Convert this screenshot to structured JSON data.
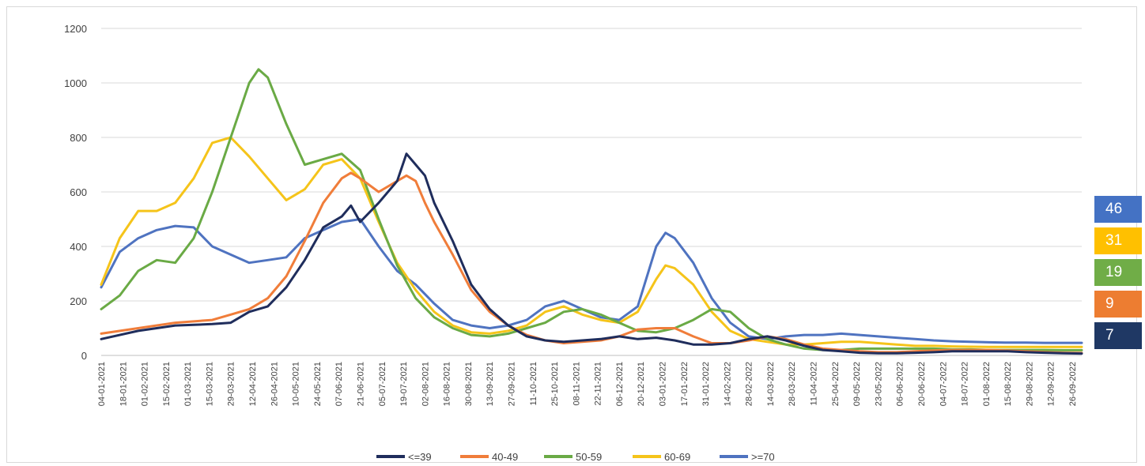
{
  "chart_data": {
    "type": "line",
    "ylim": [
      0,
      1200
    ],
    "yticks": [
      0,
      200,
      400,
      600,
      800,
      1000,
      1200
    ],
    "grid": true,
    "legend": "bottom",
    "xticks": [
      "04-01-2021",
      "18-01-2021",
      "01-02-2021",
      "15-02-2021",
      "01-03-2021",
      "15-03-2021",
      "29-03-2021",
      "12-04-2021",
      "26-04-2021",
      "10-05-2021",
      "24-05-2021",
      "07-06-2021",
      "21-06-2021",
      "05-07-2021",
      "19-07-2021",
      "02-08-2021",
      "16-08-2021",
      "30-08-2021",
      "13-09-2021",
      "27-09-2021",
      "11-10-2021",
      "25-10-2021",
      "08-11-2021",
      "22-11-2021",
      "06-12-2021",
      "20-12-2021",
      "03-01-2022",
      "17-01-2022",
      "31-01-2022",
      "14-02-2022",
      "28-02-2022",
      "14-03-2022",
      "28-03-2022",
      "11-04-2022",
      "25-04-2022",
      "09-05-2022",
      "23-05-2022",
      "06-06-2022",
      "20-06-2022",
      "04-07-2022",
      "18-07-2022",
      "01-08-2022",
      "15-08-2022",
      "29-08-2022",
      "12-09-2022",
      "26-09-2022"
    ],
    "series": [
      {
        "name": "<=39",
        "color": "#1f2d5c",
        "points": [
          [
            0,
            60
          ],
          [
            2,
            90
          ],
          [
            4,
            110
          ],
          [
            6,
            115
          ],
          [
            7,
            120
          ],
          [
            8,
            160
          ],
          [
            9,
            180
          ],
          [
            10,
            250
          ],
          [
            11,
            350
          ],
          [
            12,
            470
          ],
          [
            13,
            510
          ],
          [
            13.5,
            550
          ],
          [
            14,
            490
          ],
          [
            15,
            560
          ],
          [
            16,
            640
          ],
          [
            16.5,
            740
          ],
          [
            17,
            700
          ],
          [
            17.5,
            660
          ],
          [
            18,
            560
          ],
          [
            19,
            420
          ],
          [
            20,
            260
          ],
          [
            21,
            170
          ],
          [
            22,
            110
          ],
          [
            23,
            70
          ],
          [
            24,
            55
          ],
          [
            25,
            50
          ],
          [
            26,
            55
          ],
          [
            27,
            60
          ],
          [
            28,
            70
          ],
          [
            29,
            60
          ],
          [
            30,
            65
          ],
          [
            31,
            55
          ],
          [
            32,
            40
          ],
          [
            33,
            40
          ],
          [
            34,
            45
          ],
          [
            35,
            60
          ],
          [
            36,
            70
          ],
          [
            37,
            55
          ],
          [
            38,
            35
          ],
          [
            39,
            20
          ],
          [
            40,
            15
          ],
          [
            41,
            10
          ],
          [
            42,
            8
          ],
          [
            43,
            8
          ],
          [
            44,
            10
          ],
          [
            45,
            12
          ],
          [
            46,
            15
          ],
          [
            47,
            15
          ],
          [
            48,
            15
          ],
          [
            49,
            15
          ],
          [
            50,
            12
          ],
          [
            51,
            10
          ],
          [
            52,
            8
          ],
          [
            53,
            7
          ]
        ]
      },
      {
        "name": "40-49",
        "color": "#f07d3a",
        "points": [
          [
            0,
            80
          ],
          [
            2,
            100
          ],
          [
            4,
            120
          ],
          [
            6,
            130
          ],
          [
            7,
            150
          ],
          [
            8,
            170
          ],
          [
            9,
            210
          ],
          [
            10,
            290
          ],
          [
            11,
            420
          ],
          [
            12,
            560
          ],
          [
            13,
            650
          ],
          [
            13.5,
            670
          ],
          [
            14,
            650
          ],
          [
            15,
            600
          ],
          [
            16,
            640
          ],
          [
            16.5,
            660
          ],
          [
            17,
            640
          ],
          [
            17.5,
            560
          ],
          [
            18,
            490
          ],
          [
            19,
            370
          ],
          [
            20,
            240
          ],
          [
            21,
            160
          ],
          [
            22,
            110
          ],
          [
            23,
            75
          ],
          [
            24,
            55
          ],
          [
            25,
            45
          ],
          [
            26,
            50
          ],
          [
            27,
            55
          ],
          [
            28,
            70
          ],
          [
            29,
            95
          ],
          [
            30,
            100
          ],
          [
            31,
            100
          ],
          [
            32,
            70
          ],
          [
            33,
            45
          ],
          [
            34,
            45
          ],
          [
            35,
            55
          ],
          [
            36,
            70
          ],
          [
            37,
            60
          ],
          [
            38,
            40
          ],
          [
            39,
            25
          ],
          [
            40,
            20
          ],
          [
            41,
            15
          ],
          [
            42,
            12
          ],
          [
            43,
            12
          ],
          [
            44,
            15
          ],
          [
            45,
            18
          ],
          [
            46,
            20
          ],
          [
            47,
            20
          ],
          [
            48,
            20
          ],
          [
            49,
            18
          ],
          [
            50,
            15
          ],
          [
            51,
            12
          ],
          [
            52,
            10
          ],
          [
            53,
            9
          ]
        ]
      },
      {
        "name": "50-59",
        "color": "#6aaa45",
        "points": [
          [
            0,
            170
          ],
          [
            1,
            220
          ],
          [
            2,
            310
          ],
          [
            3,
            350
          ],
          [
            4,
            340
          ],
          [
            5,
            430
          ],
          [
            6,
            600
          ],
          [
            7,
            800
          ],
          [
            8,
            1000
          ],
          [
            8.5,
            1050
          ],
          [
            9,
            1020
          ],
          [
            10,
            850
          ],
          [
            11,
            700
          ],
          [
            12,
            720
          ],
          [
            13,
            740
          ],
          [
            14,
            680
          ],
          [
            15,
            500
          ],
          [
            16,
            330
          ],
          [
            17,
            210
          ],
          [
            18,
            140
          ],
          [
            19,
            100
          ],
          [
            20,
            75
          ],
          [
            21,
            70
          ],
          [
            22,
            80
          ],
          [
            23,
            100
          ],
          [
            24,
            120
          ],
          [
            25,
            160
          ],
          [
            26,
            170
          ],
          [
            27,
            150
          ],
          [
            28,
            120
          ],
          [
            29,
            90
          ],
          [
            30,
            85
          ],
          [
            31,
            100
          ],
          [
            32,
            130
          ],
          [
            33,
            170
          ],
          [
            34,
            160
          ],
          [
            35,
            100
          ],
          [
            36,
            60
          ],
          [
            37,
            40
          ],
          [
            38,
            25
          ],
          [
            39,
            20
          ],
          [
            40,
            20
          ],
          [
            41,
            25
          ],
          [
            42,
            25
          ],
          [
            43,
            25
          ],
          [
            44,
            25
          ],
          [
            45,
            25
          ],
          [
            46,
            22
          ],
          [
            47,
            22
          ],
          [
            48,
            20
          ],
          [
            49,
            20
          ],
          [
            50,
            20
          ],
          [
            51,
            20
          ],
          [
            52,
            19
          ],
          [
            53,
            19
          ]
        ]
      },
      {
        "name": "60-69",
        "color": "#f5c41a",
        "points": [
          [
            0,
            260
          ],
          [
            1,
            430
          ],
          [
            2,
            530
          ],
          [
            3,
            530
          ],
          [
            4,
            560
          ],
          [
            5,
            650
          ],
          [
            6,
            780
          ],
          [
            7,
            800
          ],
          [
            8,
            730
          ],
          [
            9,
            650
          ],
          [
            10,
            570
          ],
          [
            11,
            610
          ],
          [
            12,
            700
          ],
          [
            13,
            720
          ],
          [
            14,
            650
          ],
          [
            15,
            490
          ],
          [
            16,
            340
          ],
          [
            17,
            240
          ],
          [
            18,
            160
          ],
          [
            19,
            110
          ],
          [
            20,
            85
          ],
          [
            21,
            80
          ],
          [
            22,
            90
          ],
          [
            23,
            110
          ],
          [
            24,
            160
          ],
          [
            25,
            180
          ],
          [
            26,
            150
          ],
          [
            27,
            130
          ],
          [
            28,
            120
          ],
          [
            29,
            160
          ],
          [
            30,
            280
          ],
          [
            30.5,
            330
          ],
          [
            31,
            320
          ],
          [
            32,
            260
          ],
          [
            33,
            160
          ],
          [
            34,
            90
          ],
          [
            35,
            60
          ],
          [
            36,
            50
          ],
          [
            37,
            40
          ],
          [
            38,
            40
          ],
          [
            39,
            45
          ],
          [
            40,
            50
          ],
          [
            41,
            50
          ],
          [
            42,
            45
          ],
          [
            43,
            40
          ],
          [
            44,
            35
          ],
          [
            45,
            35
          ],
          [
            46,
            33
          ],
          [
            47,
            32
          ],
          [
            48,
            31
          ],
          [
            49,
            31
          ],
          [
            50,
            31
          ],
          [
            51,
            31
          ],
          [
            52,
            31
          ],
          [
            53,
            31
          ]
        ]
      },
      {
        "name": ">=70",
        "color": "#4f73c0",
        "points": [
          [
            0,
            250
          ],
          [
            1,
            380
          ],
          [
            2,
            430
          ],
          [
            3,
            460
          ],
          [
            4,
            475
          ],
          [
            5,
            470
          ],
          [
            6,
            400
          ],
          [
            7,
            370
          ],
          [
            8,
            340
          ],
          [
            9,
            350
          ],
          [
            10,
            360
          ],
          [
            11,
            430
          ],
          [
            12,
            460
          ],
          [
            13,
            490
          ],
          [
            14,
            500
          ],
          [
            15,
            400
          ],
          [
            16,
            310
          ],
          [
            17,
            260
          ],
          [
            18,
            190
          ],
          [
            19,
            130
          ],
          [
            20,
            110
          ],
          [
            21,
            100
          ],
          [
            22,
            110
          ],
          [
            23,
            130
          ],
          [
            24,
            180
          ],
          [
            25,
            200
          ],
          [
            26,
            170
          ],
          [
            27,
            140
          ],
          [
            28,
            130
          ],
          [
            29,
            180
          ],
          [
            30,
            400
          ],
          [
            30.5,
            450
          ],
          [
            31,
            430
          ],
          [
            32,
            340
          ],
          [
            33,
            210
          ],
          [
            34,
            120
          ],
          [
            35,
            70
          ],
          [
            36,
            60
          ],
          [
            37,
            70
          ],
          [
            38,
            75
          ],
          [
            39,
            75
          ],
          [
            40,
            80
          ],
          [
            41,
            75
          ],
          [
            42,
            70
          ],
          [
            43,
            65
          ],
          [
            44,
            60
          ],
          [
            45,
            55
          ],
          [
            46,
            52
          ],
          [
            47,
            50
          ],
          [
            48,
            48
          ],
          [
            49,
            47
          ],
          [
            50,
            47
          ],
          [
            51,
            46
          ],
          [
            52,
            46
          ],
          [
            53,
            46
          ]
        ]
      }
    ],
    "last_values": [
      {
        "label": "46",
        "color": "#4472c4"
      },
      {
        "label": "31",
        "color": "#ffc000"
      },
      {
        "label": "19",
        "color": "#70ad47"
      },
      {
        "label": "9",
        "color": "#ed7d31"
      },
      {
        "label": "7",
        "color": "#1f3864"
      }
    ]
  }
}
